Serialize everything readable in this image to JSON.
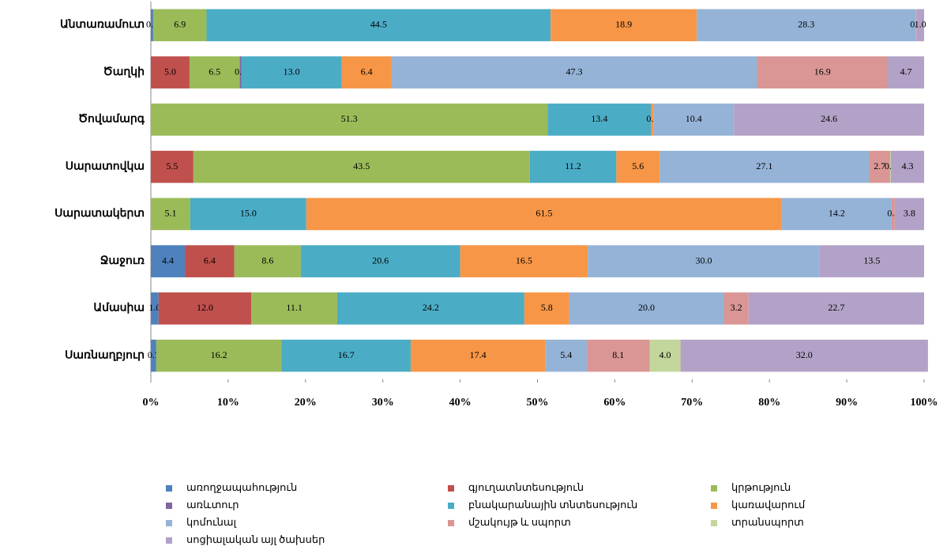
{
  "chart_data": {
    "type": "stacked_bar_horizontal",
    "categories": [
      "Անտառամուտ",
      "Ծաղկի",
      "Ծովամարգ",
      "Սարատովկա",
      "Սարատակերտ",
      "Ջաջուռ",
      "Ամասիա",
      "Սառնաղբյուր"
    ],
    "xlim": [
      0,
      100
    ],
    "xticks": [
      {
        "value": 0,
        "label": "0%"
      },
      {
        "value": 10,
        "label": "10%"
      },
      {
        "value": 20,
        "label": "20%"
      },
      {
        "value": 30,
        "label": "30%"
      },
      {
        "value": 40,
        "label": "40%"
      },
      {
        "value": 50,
        "label": "50%"
      },
      {
        "value": 60,
        "label": "60%"
      },
      {
        "value": 70,
        "label": "70%"
      },
      {
        "value": 80,
        "label": "80%"
      },
      {
        "value": 90,
        "label": "90%"
      },
      {
        "value": 100,
        "label": "100%"
      }
    ],
    "series": [
      {
        "name": "առողջապահություն",
        "color": "#4f81bd",
        "values": [
          0.3,
          null,
          null,
          null,
          null,
          4.4,
          1.0,
          0.7
        ],
        "value_labels": [
          "0.3",
          null,
          null,
          null,
          null,
          "4.4",
          "1.0",
          "0.7"
        ]
      },
      {
        "name": "գյուղատնտեսություն",
        "color": "#c0504d",
        "values": [
          null,
          5.0,
          null,
          5.5,
          null,
          6.4,
          12.0,
          null
        ],
        "value_labels": [
          null,
          "5.0",
          null,
          "5.5",
          null,
          "6.4",
          "12.0",
          null
        ]
      },
      {
        "name": "կրթություն",
        "color": "#9bbb59",
        "values": [
          6.9,
          6.5,
          51.3,
          43.5,
          5.1,
          8.6,
          11.1,
          16.2
        ],
        "value_labels": [
          "6.9",
          "6.5",
          "51.3",
          "43.5",
          "5.1",
          "8.6",
          "11.1",
          "16.2"
        ]
      },
      {
        "name": "առևտուր",
        "color": "#8064a2",
        "values": [
          null,
          0.2,
          null,
          null,
          null,
          null,
          null,
          null
        ],
        "value_labels": [
          null,
          "0.2",
          null,
          null,
          null,
          null,
          null,
          null
        ]
      },
      {
        "name": "բնակարանային տնտեսություն",
        "color": "#4bacc6",
        "values": [
          44.5,
          13.0,
          13.4,
          11.2,
          15.0,
          20.6,
          24.2,
          16.7
        ],
        "value_labels": [
          "44.5",
          "13.0",
          "13.4",
          "11.2",
          "15.0",
          "20.6",
          "24.2",
          "16.7"
        ]
      },
      {
        "name": "կառավարում",
        "color": "#f79646",
        "values": [
          18.9,
          6.4,
          0.3,
          5.6,
          61.5,
          16.5,
          5.8,
          17.4
        ],
        "value_labels": [
          "18.9",
          "6.4",
          "0.3",
          "5.6",
          "61.5",
          "16.5",
          "5.8",
          "17.4"
        ]
      },
      {
        "name": "կոմունալ",
        "color": "#95b3d7",
        "values": [
          28.3,
          47.3,
          10.4,
          27.1,
          14.2,
          30.0,
          20.0,
          5.4
        ],
        "value_labels": [
          "28.3",
          "47.3",
          "10.4",
          "27.1",
          "14.2",
          "30.0",
          "20.0",
          "5.4"
        ]
      },
      {
        "name": "մշակույթ և սպորտ",
        "color": "#d99694",
        "values": [
          0.1,
          16.9,
          null,
          2.7,
          0.4,
          null,
          3.2,
          8.1
        ],
        "value_labels": [
          "0.1",
          "16.9",
          null,
          "2.7",
          "0.4",
          null,
          "3.2",
          "8.1"
        ]
      },
      {
        "name": "տրանսպորտ",
        "color": "#c3d69b",
        "values": [
          null,
          null,
          null,
          0.1,
          null,
          null,
          null,
          4.0
        ],
        "value_labels": [
          null,
          null,
          null,
          "0.1",
          null,
          null,
          null,
          "4.0"
        ]
      },
      {
        "name": "սոցիալական այլ ծախսեր",
        "color": "#b3a2c7",
        "values": [
          1.0,
          4.7,
          24.6,
          4.3,
          3.8,
          13.5,
          22.7,
          32.0
        ],
        "value_labels": [
          "1.0",
          "4.7",
          "24.6",
          "4.3",
          "3.8",
          "13.5",
          "22.7",
          "32.0"
        ]
      }
    ],
    "legend": "bottom"
  }
}
